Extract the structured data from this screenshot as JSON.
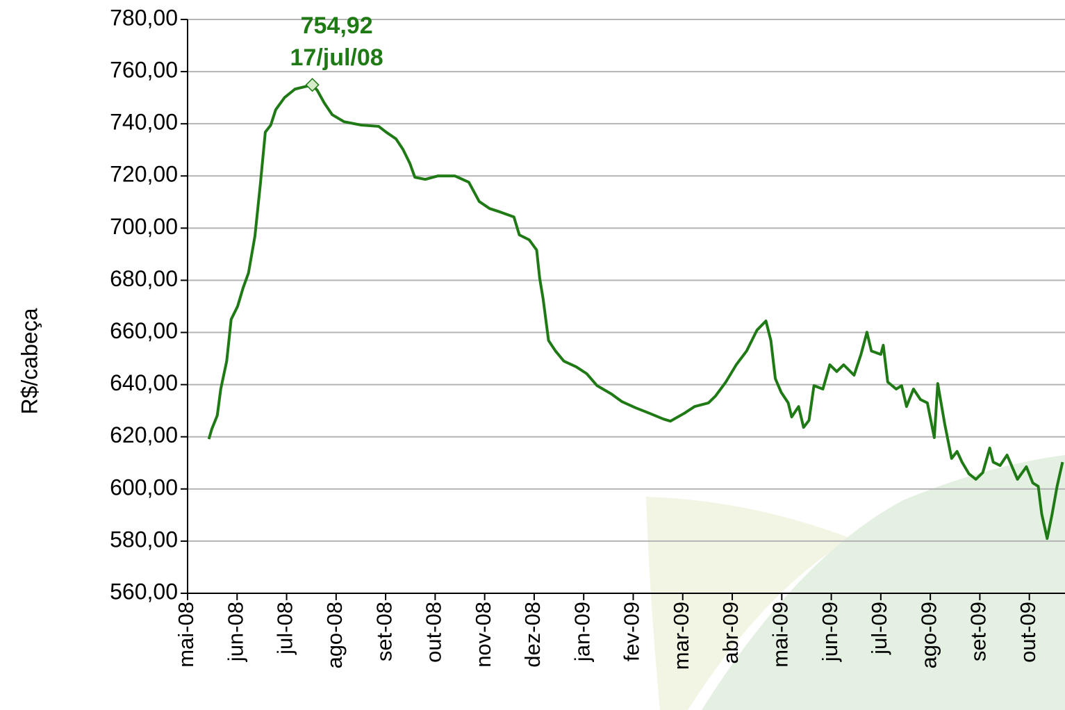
{
  "chart_data": {
    "type": "line",
    "y_label": "R$/cabeça",
    "x": [
      0.43,
      0.49,
      0.6,
      0.67,
      0.79,
      0.88,
      1.01,
      1.12,
      1.23,
      1.36,
      1.47,
      1.57,
      1.68,
      1.78,
      1.96,
      2.17,
      2.52,
      2.62,
      2.76,
      2.92,
      3.16,
      3.51,
      3.86,
      4.01,
      4.21,
      4.35,
      4.49,
      4.59,
      4.8,
      5.05,
      5.4,
      5.68,
      5.89,
      6.1,
      6.31,
      6.59,
      6.7,
      6.9,
      7.05,
      7.11,
      7.18,
      7.29,
      7.43,
      7.6,
      7.85,
      8.06,
      8.27,
      8.56,
      8.77,
      9.05,
      9.33,
      9.61,
      9.75,
      10.03,
      10.24,
      10.52,
      10.66,
      10.87,
      11.08,
      11.29,
      11.5,
      11.68,
      11.78,
      11.87,
      11.99,
      12.13,
      12.2,
      12.34,
      12.44,
      12.55,
      12.65,
      12.83,
      12.97,
      13.11,
      13.25,
      13.46,
      13.6,
      13.72,
      13.81,
      14.0,
      14.05,
      14.14,
      14.31,
      14.42,
      14.52,
      14.66,
      14.8,
      14.94,
      15.08,
      15.15,
      15.29,
      15.43,
      15.54,
      15.64,
      15.78,
      15.92,
      16.06,
      16.2,
      16.27,
      16.41,
      16.55,
      16.76,
      16.94,
      17.07,
      17.18,
      17.25,
      17.36,
      17.46,
      17.56,
      17.67
    ],
    "series": [
      {
        "color": "#1f7a16",
        "values": [
          619.1,
          623,
          628.2,
          638.3,
          649,
          665,
          670,
          677,
          682.8,
          696.9,
          716.9,
          736.8,
          739.5,
          745.4,
          750.1,
          753.3,
          754.92,
          752.8,
          748,
          743.5,
          740.8,
          739.5,
          739,
          736.8,
          734.2,
          730.2,
          724.8,
          719.5,
          718.7,
          720,
          720,
          717.6,
          710.2,
          707.5,
          706.2,
          704.3,
          697.4,
          695.5,
          691.6,
          680.9,
          672.9,
          656.9,
          652.9,
          649,
          646.8,
          644.2,
          639.6,
          636.4,
          633.5,
          631.1,
          629,
          626.8,
          626,
          629,
          631.6,
          633,
          635.6,
          641,
          647.6,
          652.9,
          660.9,
          664.4,
          656.9,
          642.3,
          637,
          633,
          627.6,
          631.6,
          623.6,
          626.3,
          639.6,
          638.3,
          647.6,
          645,
          647.6,
          643.6,
          651.6,
          660.1,
          652.9,
          651.6,
          655.1,
          641,
          638.3,
          639.6,
          631.6,
          638.3,
          634.3,
          633,
          619.7,
          640.4,
          625,
          611.7,
          614.4,
          610.3,
          605.8,
          603.7,
          606.3,
          615.7,
          610.3,
          609,
          613,
          603.7,
          608.5,
          602.3,
          601,
          590.4,
          581,
          590.4,
          601,
          610.3
        ]
      }
    ],
    "xlim": [
      0,
      17.72
    ],
    "xticks": [
      {
        "value": 0,
        "label": "mai-08"
      },
      {
        "value": 1,
        "label": "jun-08"
      },
      {
        "value": 2,
        "label": "jul-08"
      },
      {
        "value": 3,
        "label": "ago-08"
      },
      {
        "value": 4,
        "label": "set-08"
      },
      {
        "value": 5,
        "label": "out-08"
      },
      {
        "value": 6,
        "label": "nov-08"
      },
      {
        "value": 7,
        "label": "dez-08"
      },
      {
        "value": 8,
        "label": "jan-09"
      },
      {
        "value": 9,
        "label": "fev-09"
      },
      {
        "value": 10,
        "label": "mar-09"
      },
      {
        "value": 11,
        "label": "abr-09"
      },
      {
        "value": 12,
        "label": "mai-09"
      },
      {
        "value": 13,
        "label": "jun-09"
      },
      {
        "value": 14,
        "label": "jul-09"
      },
      {
        "value": 15,
        "label": "ago-09"
      },
      {
        "value": 16,
        "label": "set-09"
      },
      {
        "value": 17,
        "label": "out-09"
      }
    ],
    "ylim": [
      560,
      780
    ],
    "yticks": [
      {
        "value": 560,
        "label": "560,00"
      },
      {
        "value": 580,
        "label": "580,00"
      },
      {
        "value": 600,
        "label": "600,00"
      },
      {
        "value": 620,
        "label": "620,00"
      },
      {
        "value": 640,
        "label": "640,00"
      },
      {
        "value": 660,
        "label": "660,00"
      },
      {
        "value": 680,
        "label": "680,00"
      },
      {
        "value": 700,
        "label": "700,00"
      },
      {
        "value": 720,
        "label": "720,00"
      },
      {
        "value": 740,
        "label": "740,00"
      },
      {
        "value": 760,
        "label": "760,00"
      },
      {
        "value": 780,
        "label": "780,00"
      }
    ],
    "grid": true,
    "annotations": [
      {
        "x": 2.52,
        "y": 754.92,
        "value_label": "754,92",
        "text": "17/jul/08"
      }
    ]
  }
}
